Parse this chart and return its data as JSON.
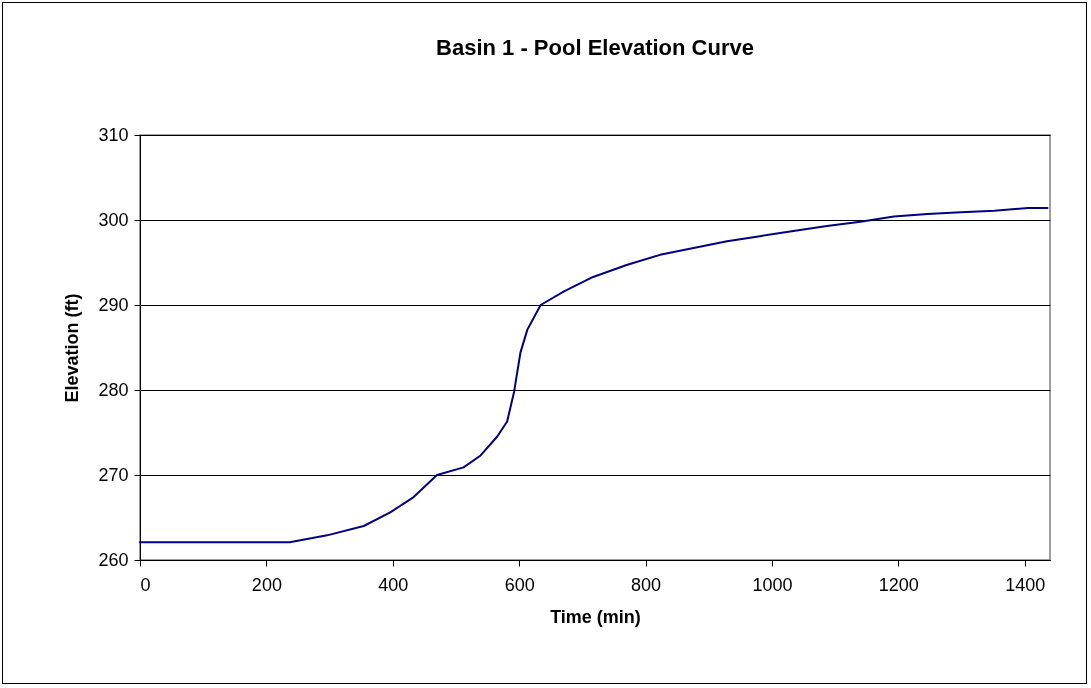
{
  "chart_data": {
    "type": "line",
    "title": "Basin 1 - Pool Elevation Curve",
    "xlabel": "Time (min)",
    "ylabel": "Elevation (ft)",
    "xlim": [
      0,
      1440
    ],
    "xticks": [
      0,
      200,
      400,
      600,
      800,
      1000,
      1200,
      1400
    ],
    "ylim": [
      260,
      310
    ],
    "yticks": [
      260,
      270,
      280,
      290,
      300,
      310
    ],
    "grid": "y",
    "legend": false,
    "marker": "none",
    "line_style": "solid",
    "series": [
      {
        "color": "#000080",
        "x": [
          0,
          237,
          296,
          354,
          396,
          433,
          470,
          512,
          539,
          565,
          581,
          592,
          602,
          613,
          634,
          671,
          717,
          770,
          823,
          876,
          929,
          981,
          1034,
          1087,
          1140,
          1193,
          1246,
          1299,
          1352,
          1405,
          1436
        ],
        "values": [
          262.1,
          262.1,
          262.9,
          264.0,
          265.6,
          267.4,
          270.0,
          270.9,
          272.3,
          274.5,
          276.3,
          279.8,
          284.4,
          287.1,
          290.0,
          291.6,
          293.3,
          294.7,
          295.9,
          296.7,
          297.5,
          298.1,
          298.7,
          299.3,
          299.8,
          300.4,
          300.7,
          300.9,
          301.1,
          301.4,
          301.4
        ]
      }
    ]
  }
}
